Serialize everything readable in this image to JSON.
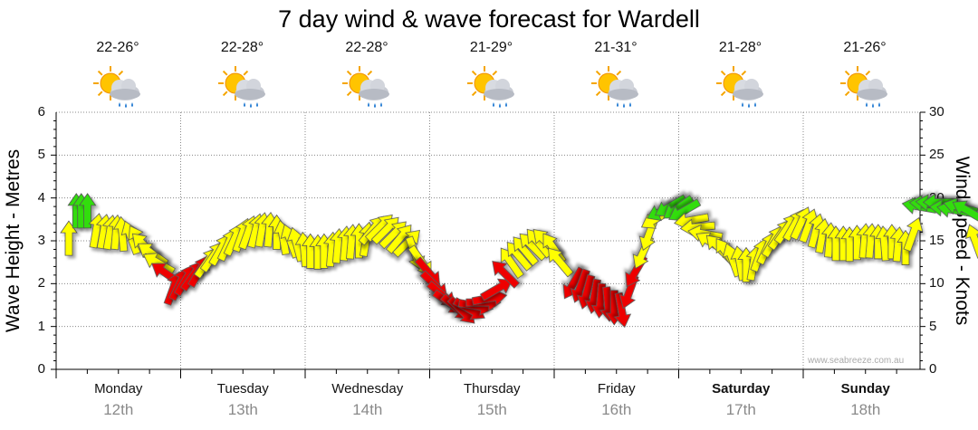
{
  "chart_data": {
    "type": "scatter",
    "title": "7 day wind & wave forecast for Wardell",
    "ylabel_left": "Wave Height - Metres",
    "ylabel_right": "Wind Speed - Knots",
    "y_left_range": [
      0,
      6
    ],
    "y_left_ticks": [
      "0",
      "1",
      "2",
      "3",
      "4",
      "5",
      "6"
    ],
    "y_right_range": [
      0,
      30
    ],
    "y_right_ticks": [
      "0",
      "5",
      "10",
      "15",
      "20",
      "25",
      "30"
    ],
    "grid": true,
    "days": [
      {
        "name": "Monday",
        "date": "12th",
        "temp": "22-26°",
        "bold": false,
        "icon": "sun-cloud-showers-icon"
      },
      {
        "name": "Tuesday",
        "date": "13th",
        "temp": "22-28°",
        "bold": false,
        "icon": "sun-cloud-showers-icon"
      },
      {
        "name": "Wednesday",
        "date": "14th",
        "temp": "22-28°",
        "bold": false,
        "icon": "sun-cloud-showers-icon"
      },
      {
        "name": "Thursday",
        "date": "15th",
        "temp": "21-29°",
        "bold": false,
        "icon": "sun-cloud-showers-icon"
      },
      {
        "name": "Friday",
        "date": "16th",
        "temp": "21-31°",
        "bold": false,
        "icon": "sun-cloud-showers-icon"
      },
      {
        "name": "Saturday",
        "date": "17th",
        "temp": "21-28°",
        "bold": true,
        "icon": "sun-cloud-showers-icon"
      },
      {
        "name": "Sunday",
        "date": "18th",
        "temp": "21-26°",
        "bold": true,
        "icon": "sun-cloud-showers-icon"
      }
    ],
    "wind_series_unit": "knots",
    "wind_points": [
      [
        0.0,
        15.3,
        0
      ],
      [
        0.06,
        18.5,
        0
      ],
      [
        0.1,
        18.5,
        0
      ],
      [
        0.15,
        18.5,
        0
      ],
      [
        0.22,
        16.2,
        10
      ],
      [
        0.28,
        16.1,
        10
      ],
      [
        0.33,
        16.0,
        10
      ],
      [
        0.38,
        16.0,
        5
      ],
      [
        0.43,
        15.8,
        -5
      ],
      [
        0.5,
        15.4,
        -20
      ],
      [
        0.56,
        15.0,
        -30
      ],
      [
        0.61,
        14.4,
        -45
      ],
      [
        0.67,
        13.5,
        -55
      ],
      [
        0.72,
        12.4,
        -60
      ],
      [
        0.78,
        11.2,
        -55
      ],
      [
        0.84,
        9.5,
        20
      ],
      [
        0.89,
        10.0,
        25
      ],
      [
        0.94,
        10.5,
        30
      ],
      [
        1.0,
        11.0,
        35
      ],
      [
        1.05,
        11.5,
        30
      ],
      [
        1.11,
        12.5,
        35
      ],
      [
        1.16,
        13.2,
        35
      ],
      [
        1.22,
        14.0,
        30
      ],
      [
        1.28,
        14.6,
        25
      ],
      [
        1.33,
        15.2,
        25
      ],
      [
        1.39,
        15.7,
        20
      ],
      [
        1.44,
        16.0,
        20
      ],
      [
        1.5,
        16.2,
        15
      ],
      [
        1.55,
        16.3,
        10
      ],
      [
        1.61,
        16.3,
        5
      ],
      [
        1.67,
        16.0,
        0
      ],
      [
        1.72,
        15.4,
        -10
      ],
      [
        1.78,
        15.0,
        -20
      ],
      [
        1.83,
        14.6,
        -15
      ],
      [
        1.89,
        14.0,
        -5
      ],
      [
        1.94,
        13.8,
        0
      ],
      [
        2.0,
        13.7,
        0
      ],
      [
        2.05,
        13.8,
        0
      ],
      [
        2.11,
        14.0,
        5
      ],
      [
        2.16,
        14.4,
        5
      ],
      [
        2.22,
        14.7,
        5
      ],
      [
        2.27,
        14.9,
        5
      ],
      [
        2.33,
        15.0,
        0
      ],
      [
        2.39,
        15.2,
        10
      ],
      [
        2.44,
        16.3,
        40
      ],
      [
        2.5,
        16.6,
        45
      ],
      [
        2.55,
        16.3,
        45
      ],
      [
        2.61,
        15.8,
        45
      ],
      [
        2.66,
        15.3,
        40
      ],
      [
        2.72,
        14.8,
        45
      ],
      [
        2.78,
        13.5,
        160
      ],
      [
        2.83,
        12.6,
        145
      ],
      [
        2.89,
        11.3,
        140
      ],
      [
        2.94,
        9.8,
        135
      ],
      [
        3.0,
        8.7,
        130
      ],
      [
        3.05,
        7.8,
        125
      ],
      [
        3.11,
        7.2,
        130
      ],
      [
        3.16,
        6.8,
        135
      ],
      [
        3.22,
        7.0,
        120
      ],
      [
        3.27,
        7.4,
        100
      ],
      [
        3.33,
        7.8,
        90
      ],
      [
        3.38,
        8.3,
        80
      ],
      [
        3.44,
        9.4,
        60
      ],
      [
        3.5,
        11.2,
        -45
      ],
      [
        3.55,
        12.5,
        -35
      ],
      [
        3.61,
        13.3,
        -40
      ],
      [
        3.66,
        13.9,
        -40
      ],
      [
        3.72,
        14.4,
        -45
      ],
      [
        3.77,
        14.8,
        -40
      ],
      [
        3.83,
        14.9,
        -45
      ],
      [
        3.89,
        14.2,
        -35
      ],
      [
        3.94,
        12.6,
        -40
      ],
      [
        4.05,
        10.0,
        -150
      ],
      [
        4.11,
        9.7,
        -160
      ],
      [
        4.16,
        9.0,
        -165
      ],
      [
        4.22,
        8.5,
        -170
      ],
      [
        4.27,
        8.0,
        -175
      ],
      [
        4.33,
        7.6,
        175
      ],
      [
        4.38,
        7.2,
        180
      ],
      [
        4.44,
        6.9,
        170
      ],
      [
        4.5,
        9.0,
        200
      ],
      [
        4.55,
        11.4,
        210
      ],
      [
        4.61,
        13.6,
        205
      ],
      [
        4.66,
        15.8,
        200
      ],
      [
        4.72,
        17.6,
        -120
      ],
      [
        4.77,
        18.5,
        -115
      ],
      [
        4.83,
        19.0,
        -120
      ],
      [
        4.89,
        18.8,
        -125
      ],
      [
        4.94,
        18.5,
        -120
      ],
      [
        5.0,
        17.4,
        -100
      ],
      [
        5.05,
        16.6,
        -95
      ],
      [
        5.11,
        15.8,
        -80
      ],
      [
        5.16,
        14.8,
        -60
      ],
      [
        5.22,
        14.2,
        -45
      ],
      [
        5.28,
        13.6,
        -35
      ],
      [
        5.33,
        12.8,
        -20
      ],
      [
        5.39,
        12.4,
        -10
      ],
      [
        5.44,
        12.2,
        0
      ],
      [
        5.5,
        12.4,
        10
      ],
      [
        5.55,
        13.4,
        20
      ],
      [
        5.61,
        14.2,
        25
      ],
      [
        5.66,
        15.0,
        30
      ],
      [
        5.72,
        15.8,
        35
      ],
      [
        5.77,
        16.5,
        35
      ],
      [
        5.83,
        16.9,
        30
      ],
      [
        5.88,
        17.1,
        25
      ],
      [
        5.94,
        16.8,
        20
      ],
      [
        6.0,
        16.2,
        15
      ],
      [
        6.05,
        15.6,
        10
      ],
      [
        6.11,
        15.1,
        5
      ],
      [
        6.16,
        14.7,
        0
      ],
      [
        6.22,
        14.7,
        0
      ],
      [
        6.27,
        14.6,
        0
      ],
      [
        6.33,
        14.8,
        0
      ],
      [
        6.39,
        15.0,
        5
      ],
      [
        6.44,
        15.0,
        5
      ],
      [
        6.5,
        14.9,
        0
      ],
      [
        6.55,
        14.7,
        -5
      ],
      [
        6.61,
        14.9,
        0
      ],
      [
        6.66,
        14.6,
        5
      ],
      [
        6.72,
        14.2,
        0
      ],
      [
        6.78,
        15.8,
        20
      ],
      [
        6.83,
        19.0,
        -80
      ],
      [
        6.89,
        19.3,
        -85
      ],
      [
        6.94,
        19.4,
        -85
      ],
      [
        7.0,
        19.5,
        -90
      ],
      [
        7.05,
        18.8,
        -85
      ],
      [
        7.11,
        18.6,
        -80
      ],
      [
        7.16,
        18.9,
        -75
      ],
      [
        7.22,
        18.5,
        -60
      ],
      [
        7.28,
        15.0,
        -20
      ]
    ],
    "arrow_colors": {
      "calm": "#33dd11",
      "light": "#ffff00",
      "strong": "#ee0000"
    },
    "credit": "www.seabreeze.com.au"
  }
}
